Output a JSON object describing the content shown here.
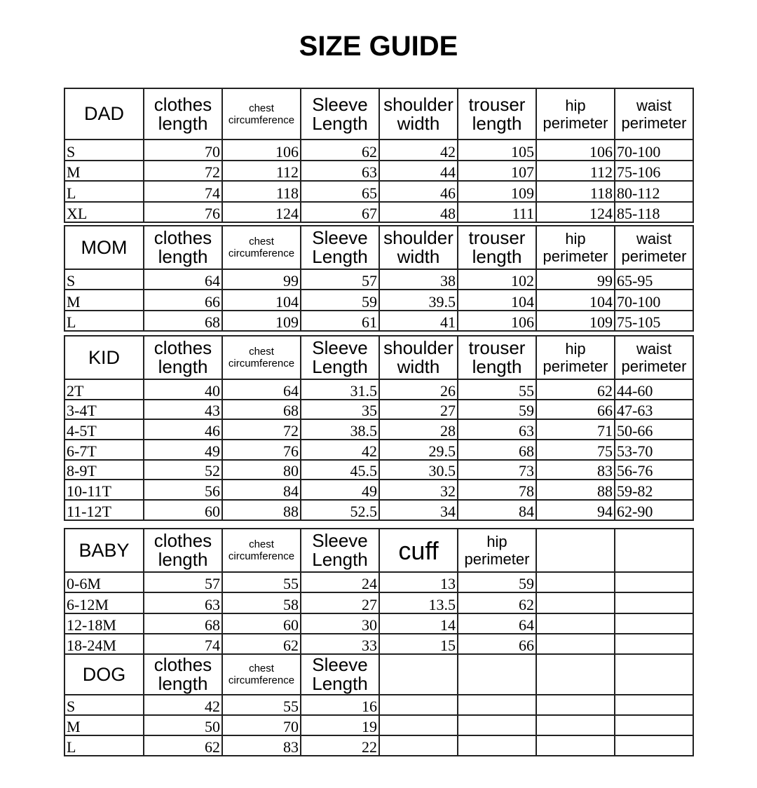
{
  "title": "SIZE GUIDE",
  "sections": [
    {
      "name": "DAD",
      "headers": [
        "clothes length",
        "chest circumference",
        "Sleeve Length",
        "shoulder width",
        "trouser length",
        "hip perimeter",
        "waist perimeter"
      ],
      "rows": [
        [
          "S",
          "70",
          "106",
          "62",
          "42",
          "105",
          "106",
          "70-100"
        ],
        [
          "M",
          "72",
          "112",
          "63",
          "44",
          "107",
          "112",
          "75-106"
        ],
        [
          "L",
          "74",
          "118",
          "65",
          "46",
          "109",
          "118",
          "80-112"
        ],
        [
          "XL",
          "76",
          "124",
          "67",
          "48",
          "111",
          "124",
          "85-118"
        ]
      ]
    },
    {
      "name": "MOM",
      "headers": [
        "clothes length",
        "chest circumference",
        "Sleeve Length",
        "shoulder width",
        "trouser length",
        "hip perimeter",
        "waist perimeter"
      ],
      "rows": [
        [
          "S",
          "64",
          "99",
          "57",
          "38",
          "102",
          "99",
          "65-95"
        ],
        [
          "M",
          "66",
          "104",
          "59",
          "39.5",
          "104",
          "104",
          "70-100"
        ],
        [
          "L",
          "68",
          "109",
          "61",
          "41",
          "106",
          "109",
          "75-105"
        ]
      ]
    },
    {
      "name": "KID",
      "headers": [
        "clothes length",
        "chest circumference",
        "Sleeve Length",
        "shoulder width",
        "trouser length",
        "hip perimeter",
        "waist perimeter"
      ],
      "rows": [
        [
          "2T",
          "40",
          "64",
          "31.5",
          "26",
          "55",
          "62",
          "44-60"
        ],
        [
          "3-4T",
          "43",
          "68",
          "35",
          "27",
          "59",
          "66",
          "47-63"
        ],
        [
          "4-5T",
          "46",
          "72",
          "38.5",
          "28",
          "63",
          "71",
          "50-66"
        ],
        [
          "6-7T",
          "49",
          "76",
          "42",
          "29.5",
          "68",
          "75",
          "53-70"
        ],
        [
          "8-9T",
          "52",
          "80",
          "45.5",
          "30.5",
          "73",
          "83",
          "56-76"
        ],
        [
          "10-11T",
          "56",
          "84",
          "49",
          "32",
          "78",
          "88",
          "59-82"
        ],
        [
          "11-12T",
          "60",
          "88",
          "52.5",
          "34",
          "84",
          "94",
          "62-90"
        ]
      ]
    },
    {
      "name": "BABY",
      "headers": [
        "clothes length",
        "chest circumference",
        "Sleeve Length",
        "cuff",
        "hip perimeter",
        "",
        ""
      ],
      "rows": [
        [
          "0-6M",
          "57",
          "55",
          "24",
          "13",
          "59",
          "",
          ""
        ],
        [
          "6-12M",
          "63",
          "58",
          "27",
          "13.5",
          "62",
          "",
          ""
        ],
        [
          "12-18M",
          "68",
          "60",
          "30",
          "14",
          "64",
          "",
          ""
        ],
        [
          "18-24M",
          "74",
          "62",
          "33",
          "15",
          "66",
          "",
          ""
        ]
      ]
    },
    {
      "name": "DOG",
      "headers": [
        "clothes length",
        "chest circumference",
        "Sleeve Length",
        "",
        "",
        "",
        ""
      ],
      "rows": [
        [
          "S",
          "42",
          "55",
          "16",
          "",
          "",
          "",
          ""
        ],
        [
          "M",
          "50",
          "70",
          "19",
          "",
          "",
          "",
          ""
        ],
        [
          "L",
          "62",
          "83",
          "22",
          "",
          "",
          "",
          ""
        ]
      ]
    }
  ]
}
